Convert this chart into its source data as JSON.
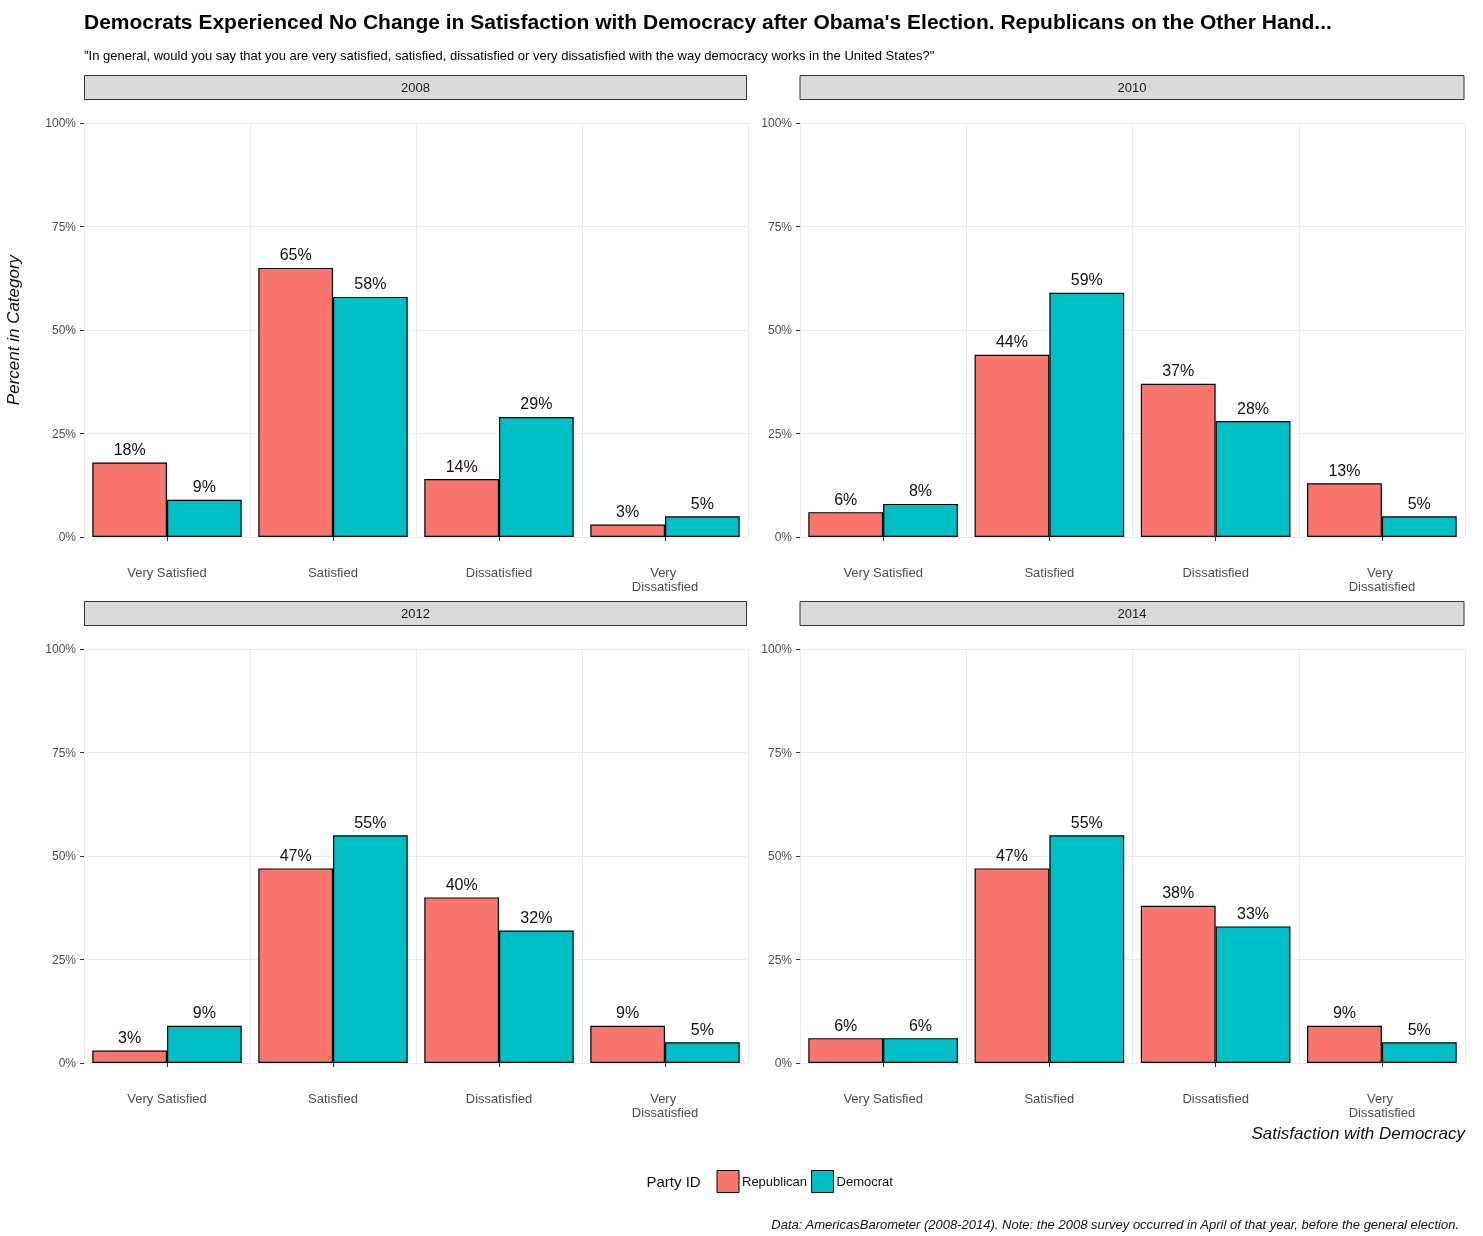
{
  "chart_data": [
    {
      "type": "other",
      "title": "Democrats Experienced No Change in Satisfaction with Democracy after Obama's Election. Republicans on the Other Hand...",
      "subtitle": "\"In general, would you say that you are very satisfied, satisfied, dissatisfied or very dissatisfied with the way democracy works in the United States?\""
    },
    {
      "type": "bar",
      "title": "2008",
      "ylabel": "Percent in Category",
      "categories": [
        "Very Satisfied",
        "Satisfied",
        "Dissatisfied",
        "Very Dissatisfied"
      ],
      "series": [
        {
          "color": "#f8766d",
          "values": [
            18,
            65,
            14,
            3
          ],
          "value_labels": [
            "18%",
            "65%",
            "14%",
            "3%"
          ]
        },
        {
          "color": "#00bfc4",
          "values": [
            9,
            58,
            29,
            5
          ],
          "value_labels": [
            "9%",
            "58%",
            "29%",
            "5%"
          ]
        }
      ],
      "ylim": [
        0,
        100
      ],
      "yticks": [
        {
          "value": 0,
          "label": "0%"
        },
        {
          "value": 25,
          "label": "25%"
        },
        {
          "value": 50,
          "label": "50%"
        },
        {
          "value": 75,
          "label": "75%"
        },
        {
          "value": 100,
          "label": "100%"
        }
      ],
      "grid": true,
      "legend": false
    },
    {
      "type": "bar",
      "title": "2010",
      "categories": [
        "Very Satisfied",
        "Satisfied",
        "Dissatisfied",
        "Very Dissatisfied"
      ],
      "series": [
        {
          "color": "#f8766d",
          "values": [
            6,
            44,
            37,
            13
          ],
          "value_labels": [
            "6%",
            "44%",
            "37%",
            "13%"
          ]
        },
        {
          "color": "#00bfc4",
          "values": [
            8,
            59,
            28,
            5
          ],
          "value_labels": [
            "8%",
            "59%",
            "28%",
            "5%"
          ]
        }
      ],
      "ylim": [
        0,
        100
      ],
      "yticks": [
        {
          "value": 0,
          "label": "0%"
        },
        {
          "value": 25,
          "label": "25%"
        },
        {
          "value": 50,
          "label": "50%"
        },
        {
          "value": 75,
          "label": "75%"
        },
        {
          "value": 100,
          "label": "100%"
        }
      ],
      "grid": true,
      "legend": false
    },
    {
      "type": "bar",
      "title": "2012",
      "categories": [
        "Very Satisfied",
        "Satisfied",
        "Dissatisfied",
        "Very Dissatisfied"
      ],
      "series": [
        {
          "color": "#f8766d",
          "values": [
            3,
            47,
            40,
            9
          ],
          "value_labels": [
            "3%",
            "47%",
            "40%",
            "9%"
          ]
        },
        {
          "color": "#00bfc4",
          "values": [
            9,
            55,
            32,
            5
          ],
          "value_labels": [
            "9%",
            "55%",
            "32%",
            "5%"
          ]
        }
      ],
      "ylim": [
        0,
        100
      ],
      "yticks": [
        {
          "value": 0,
          "label": "0%"
        },
        {
          "value": 25,
          "label": "25%"
        },
        {
          "value": 50,
          "label": "50%"
        },
        {
          "value": 75,
          "label": "75%"
        },
        {
          "value": 100,
          "label": "100%"
        }
      ],
      "grid": true,
      "legend": false
    },
    {
      "type": "bar",
      "title": "2014",
      "xlabel": "Satisfaction with Democracy",
      "legend_title": "Party ID",
      "categories": [
        "Very Satisfied",
        "Satisfied",
        "Dissatisfied",
        "Very Dissatisfied"
      ],
      "series": [
        {
          "name": "Republican",
          "color": "#f8766d",
          "values": [
            6,
            47,
            38,
            9
          ],
          "value_labels": [
            "6%",
            "47%",
            "38%",
            "9%"
          ]
        },
        {
          "name": "Democrat",
          "color": "#00bfc4",
          "values": [
            6,
            55,
            33,
            5
          ],
          "value_labels": [
            "6%",
            "55%",
            "33%",
            "5%"
          ]
        }
      ],
      "ylim": [
        0,
        100
      ],
      "yticks": [
        {
          "value": 0,
          "label": "0%"
        },
        {
          "value": 25,
          "label": "25%"
        },
        {
          "value": 50,
          "label": "50%"
        },
        {
          "value": 75,
          "label": "75%"
        },
        {
          "value": 100,
          "label": "100%"
        }
      ],
      "grid": true,
      "legend": "bottom",
      "annotations": [
        "Data: AmericasBarometer (2008-2014). Note: the 2008 survey occurred in April of that year, before the general election."
      ]
    }
  ]
}
